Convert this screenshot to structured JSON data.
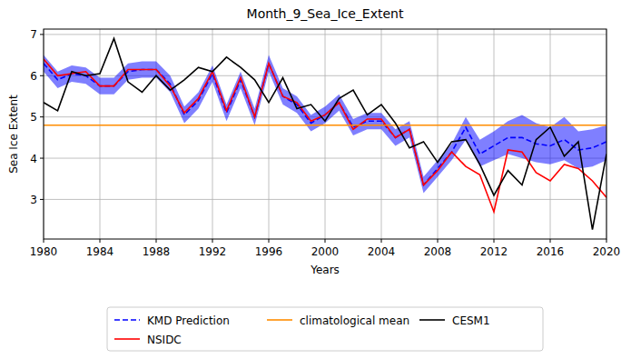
{
  "chart_data": {
    "type": "line",
    "title": "Month_9_Sea_Ice_Extent",
    "x_label": "Years",
    "y_label": "Sea Ice Extent",
    "x": [
      1980,
      1981,
      1982,
      1983,
      1984,
      1985,
      1986,
      1987,
      1988,
      1989,
      1990,
      1991,
      1992,
      1993,
      1994,
      1995,
      1996,
      1997,
      1998,
      1999,
      2000,
      2001,
      2002,
      2003,
      2004,
      2005,
      2006,
      2007,
      2008,
      2009,
      2010,
      2011,
      2012,
      2013,
      2014,
      2015,
      2016,
      2017,
      2018,
      2019,
      2020
    ],
    "xlim": [
      1980,
      2020
    ],
    "xticks": [
      1980,
      1984,
      1988,
      1992,
      1996,
      2000,
      2004,
      2008,
      2012,
      2016,
      2020
    ],
    "ylim": [
      2.04,
      7.13
    ],
    "yticks": [
      3,
      4,
      5,
      6,
      7
    ],
    "grid": true,
    "legend": "bottom",
    "series": [
      {
        "name": "KMD Prediction",
        "color": "#0000ff",
        "line_style": "dashed",
        "values": [
          6.3,
          5.9,
          6.05,
          6.0,
          5.75,
          5.75,
          6.1,
          6.15,
          6.15,
          5.8,
          5.05,
          5.4,
          6.05,
          5.1,
          5.9,
          5.0,
          6.3,
          5.5,
          5.3,
          4.85,
          5.05,
          5.35,
          4.75,
          4.9,
          4.9,
          4.5,
          4.7,
          3.35,
          3.75,
          4.15,
          4.75,
          4.1,
          4.3,
          4.5,
          4.5,
          4.35,
          4.3,
          4.45,
          4.2,
          4.25,
          4.4
        ],
        "upper": [
          6.5,
          6.1,
          6.25,
          6.2,
          5.95,
          5.95,
          6.3,
          6.35,
          6.35,
          6.0,
          5.25,
          5.6,
          6.25,
          5.3,
          6.1,
          5.2,
          6.5,
          5.7,
          5.5,
          5.05,
          5.25,
          5.55,
          4.95,
          5.1,
          5.1,
          4.7,
          4.9,
          3.55,
          3.95,
          4.35,
          5.0,
          4.45,
          4.65,
          4.9,
          5.05,
          4.85,
          4.75,
          5.0,
          4.65,
          4.7,
          4.8
        ],
        "lower": [
          6.1,
          5.7,
          5.85,
          5.8,
          5.55,
          5.55,
          5.9,
          5.95,
          5.95,
          5.6,
          4.85,
          5.2,
          5.85,
          4.9,
          5.7,
          4.8,
          6.1,
          5.3,
          5.1,
          4.65,
          4.85,
          5.15,
          4.55,
          4.7,
          4.7,
          4.3,
          4.5,
          3.15,
          3.55,
          3.95,
          4.45,
          3.8,
          3.95,
          4.1,
          4.0,
          3.9,
          3.85,
          3.95,
          3.75,
          3.8,
          3.95
        ]
      },
      {
        "name": "NSIDC",
        "color": "#ff0000",
        "line_style": "solid",
        "values": [
          6.4,
          6.0,
          6.05,
          6.1,
          5.75,
          5.75,
          6.15,
          6.15,
          6.15,
          5.75,
          5.1,
          5.45,
          6.1,
          5.15,
          5.95,
          5.0,
          6.3,
          5.5,
          5.35,
          4.9,
          5.05,
          5.35,
          4.7,
          4.95,
          4.95,
          4.5,
          4.7,
          3.35,
          3.7,
          4.15,
          3.8,
          3.6,
          2.7,
          4.2,
          4.15,
          3.65,
          3.45,
          3.85,
          3.75,
          3.45,
          3.05
        ]
      },
      {
        "name": "climatological mean",
        "color": "#ff8c00",
        "line_style": "solid",
        "values": [
          4.8,
          4.8,
          4.8,
          4.8,
          4.8,
          4.8,
          4.8,
          4.8,
          4.8,
          4.8,
          4.8,
          4.8,
          4.8,
          4.8,
          4.8,
          4.8,
          4.8,
          4.8,
          4.8,
          4.8,
          4.8,
          4.8,
          4.8,
          4.8,
          4.8,
          4.8,
          4.8,
          4.8,
          4.8,
          4.8,
          4.8,
          4.8,
          4.8,
          4.8,
          4.8,
          4.8,
          4.8,
          4.8,
          4.8,
          4.8,
          4.8
        ]
      },
      {
        "name": "CESM1",
        "color": "#000000",
        "line_style": "solid",
        "values": [
          5.35,
          5.15,
          6.1,
          6.0,
          6.05,
          6.9,
          5.85,
          5.6,
          6.0,
          5.65,
          5.9,
          6.2,
          6.1,
          6.45,
          6.2,
          5.9,
          5.35,
          5.95,
          5.2,
          5.3,
          4.9,
          5.45,
          5.65,
          5.05,
          5.3,
          4.85,
          4.25,
          4.4,
          3.9,
          4.4,
          4.45,
          3.85,
          3.1,
          3.7,
          3.35,
          4.45,
          4.75,
          4.05,
          4.4,
          2.27,
          4.1
        ]
      }
    ]
  }
}
